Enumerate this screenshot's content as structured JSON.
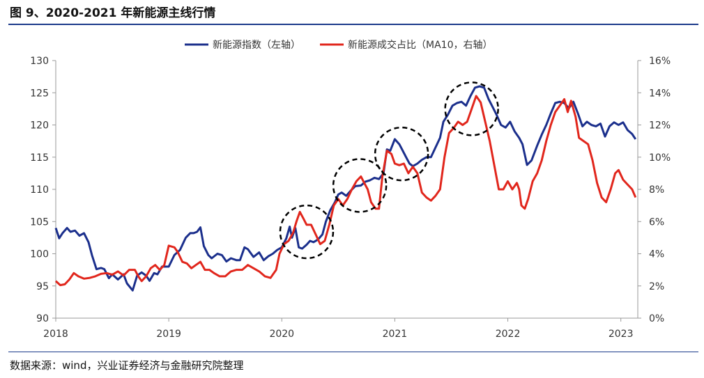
{
  "title": "图 9、2020-2021 年新能源主线行情",
  "source": "数据来源：wind，兴业证券经济与金融研究院整理",
  "chart_data": {
    "type": "line",
    "x_tick_labels": [
      "2018",
      "2019",
      "2020",
      "2021",
      "2022",
      "2023"
    ],
    "xlim": [
      2018.0,
      2023.15
    ],
    "y_left": {
      "lim": [
        90,
        130
      ],
      "ticks": [
        "90",
        "95",
        "100",
        "105",
        "110",
        "115",
        "120",
        "125",
        "130"
      ]
    },
    "y_right": {
      "lim": [
        0,
        16
      ],
      "ticks": [
        "0%",
        "2%",
        "4%",
        "6%",
        "8%",
        "10%",
        "12%",
        "14%",
        "16%"
      ]
    },
    "series": [
      {
        "name": "新能源指数（左轴）",
        "axis": "left",
        "color": "#1b2f8c",
        "points": [
          [
            2018.0,
            104.0
          ],
          [
            2018.03,
            102.4
          ],
          [
            2018.06,
            103.2
          ],
          [
            2018.1,
            104.0
          ],
          [
            2018.13,
            103.4
          ],
          [
            2018.17,
            103.6
          ],
          [
            2018.21,
            102.8
          ],
          [
            2018.25,
            103.2
          ],
          [
            2018.29,
            101.8
          ],
          [
            2018.32,
            99.8
          ],
          [
            2018.36,
            97.6
          ],
          [
            2018.4,
            97.8
          ],
          [
            2018.43,
            97.6
          ],
          [
            2018.47,
            96.2
          ],
          [
            2018.5,
            96.8
          ],
          [
            2018.55,
            96.0
          ],
          [
            2018.6,
            96.8
          ],
          [
            2018.63,
            95.4
          ],
          [
            2018.68,
            94.3
          ],
          [
            2018.72,
            96.6
          ],
          [
            2018.76,
            97.1
          ],
          [
            2018.8,
            96.6
          ],
          [
            2018.83,
            95.8
          ],
          [
            2018.87,
            97.0
          ],
          [
            2018.9,
            96.8
          ],
          [
            2018.94,
            98.0
          ],
          [
            2019.0,
            98.0
          ],
          [
            2019.05,
            99.8
          ],
          [
            2019.1,
            100.6
          ],
          [
            2019.15,
            102.5
          ],
          [
            2019.19,
            103.2
          ],
          [
            2019.22,
            103.2
          ],
          [
            2019.25,
            103.4
          ],
          [
            2019.28,
            104.1
          ],
          [
            2019.31,
            101.2
          ],
          [
            2019.35,
            99.8
          ],
          [
            2019.38,
            99.3
          ],
          [
            2019.43,
            100.0
          ],
          [
            2019.47,
            99.8
          ],
          [
            2019.51,
            98.8
          ],
          [
            2019.55,
            99.3
          ],
          [
            2019.6,
            99.0
          ],
          [
            2019.63,
            99.0
          ],
          [
            2019.67,
            101.0
          ],
          [
            2019.7,
            100.7
          ],
          [
            2019.75,
            99.5
          ],
          [
            2019.8,
            100.2
          ],
          [
            2019.84,
            99.0
          ],
          [
            2019.88,
            99.6
          ],
          [
            2019.92,
            100.0
          ],
          [
            2019.96,
            100.6
          ],
          [
            2020.0,
            101.0
          ],
          [
            2020.04,
            102.4
          ],
          [
            2020.07,
            104.2
          ],
          [
            2020.09,
            102.5
          ],
          [
            2020.12,
            104.0
          ],
          [
            2020.15,
            101.0
          ],
          [
            2020.18,
            100.8
          ],
          [
            2020.22,
            101.4
          ],
          [
            2020.25,
            102.0
          ],
          [
            2020.28,
            101.8
          ],
          [
            2020.32,
            102.2
          ],
          [
            2020.36,
            103.0
          ],
          [
            2020.39,
            105.0
          ],
          [
            2020.43,
            106.8
          ],
          [
            2020.47,
            108.0
          ],
          [
            2020.5,
            109.2
          ],
          [
            2020.53,
            109.5
          ],
          [
            2020.57,
            109.0
          ],
          [
            2020.61,
            109.8
          ],
          [
            2020.65,
            110.5
          ],
          [
            2020.7,
            110.6
          ],
          [
            2020.74,
            111.2
          ],
          [
            2020.78,
            111.4
          ],
          [
            2020.82,
            111.8
          ],
          [
            2020.86,
            111.6
          ],
          [
            2020.9,
            112.5
          ],
          [
            2020.93,
            116.2
          ],
          [
            2020.96,
            116.0
          ],
          [
            2021.0,
            117.8
          ],
          [
            2021.04,
            117.0
          ],
          [
            2021.07,
            116.0
          ],
          [
            2021.1,
            115.0
          ],
          [
            2021.13,
            114.0
          ],
          [
            2021.16,
            113.6
          ],
          [
            2021.2,
            114.0
          ],
          [
            2021.24,
            114.6
          ],
          [
            2021.28,
            115.0
          ],
          [
            2021.32,
            115.0
          ],
          [
            2021.36,
            116.5
          ],
          [
            2021.4,
            118.0
          ],
          [
            2021.43,
            120.5
          ],
          [
            2021.47,
            121.6
          ],
          [
            2021.51,
            123.0
          ],
          [
            2021.55,
            123.4
          ],
          [
            2021.59,
            123.6
          ],
          [
            2021.63,
            123.0
          ],
          [
            2021.67,
            124.5
          ],
          [
            2021.71,
            125.8
          ],
          [
            2021.75,
            126.0
          ],
          [
            2021.79,
            125.8
          ],
          [
            2021.83,
            124.0
          ],
          [
            2021.86,
            123.0
          ],
          [
            2021.9,
            121.6
          ],
          [
            2021.94,
            120.0
          ],
          [
            2021.98,
            119.6
          ],
          [
            2022.02,
            120.5
          ],
          [
            2022.06,
            119.0
          ],
          [
            2022.1,
            118.0
          ],
          [
            2022.13,
            117.0
          ],
          [
            2022.17,
            113.8
          ],
          [
            2022.21,
            114.5
          ],
          [
            2022.26,
            116.8
          ],
          [
            2022.3,
            118.5
          ],
          [
            2022.34,
            120.0
          ],
          [
            2022.38,
            121.8
          ],
          [
            2022.42,
            123.4
          ],
          [
            2022.46,
            123.6
          ],
          [
            2022.5,
            123.4
          ],
          [
            2022.54,
            122.6
          ],
          [
            2022.58,
            123.6
          ],
          [
            2022.62,
            121.8
          ],
          [
            2022.66,
            119.8
          ],
          [
            2022.7,
            120.5
          ],
          [
            2022.74,
            120.0
          ],
          [
            2022.78,
            119.8
          ],
          [
            2022.82,
            120.2
          ],
          [
            2022.86,
            118.2
          ],
          [
            2022.9,
            119.8
          ],
          [
            2022.94,
            120.4
          ],
          [
            2022.98,
            120.0
          ],
          [
            2023.02,
            120.4
          ],
          [
            2023.06,
            119.2
          ],
          [
            2023.1,
            118.6
          ],
          [
            2023.13,
            117.8
          ]
        ]
      },
      {
        "name": "新能源成交占比（MA10，右轴）",
        "axis": "right",
        "color": "#e1261c",
        "points": [
          [
            2018.0,
            2.3
          ],
          [
            2018.04,
            2.05
          ],
          [
            2018.08,
            2.1
          ],
          [
            2018.12,
            2.4
          ],
          [
            2018.16,
            2.8
          ],
          [
            2018.2,
            2.6
          ],
          [
            2018.25,
            2.45
          ],
          [
            2018.3,
            2.5
          ],
          [
            2018.35,
            2.6
          ],
          [
            2018.4,
            2.75
          ],
          [
            2018.45,
            2.8
          ],
          [
            2018.5,
            2.7
          ],
          [
            2018.55,
            2.9
          ],
          [
            2018.6,
            2.65
          ],
          [
            2018.65,
            3.0
          ],
          [
            2018.7,
            3.0
          ],
          [
            2018.73,
            2.6
          ],
          [
            2018.76,
            2.3
          ],
          [
            2018.8,
            2.6
          ],
          [
            2018.84,
            3.1
          ],
          [
            2018.88,
            3.3
          ],
          [
            2018.92,
            3.0
          ],
          [
            2018.96,
            3.3
          ],
          [
            2019.0,
            4.5
          ],
          [
            2019.05,
            4.4
          ],
          [
            2019.08,
            4.1
          ],
          [
            2019.12,
            3.5
          ],
          [
            2019.16,
            3.4
          ],
          [
            2019.2,
            3.1
          ],
          [
            2019.24,
            3.3
          ],
          [
            2019.28,
            3.5
          ],
          [
            2019.32,
            3.0
          ],
          [
            2019.36,
            3.0
          ],
          [
            2019.4,
            2.8
          ],
          [
            2019.45,
            2.6
          ],
          [
            2019.5,
            2.6
          ],
          [
            2019.55,
            2.9
          ],
          [
            2019.6,
            3.0
          ],
          [
            2019.65,
            3.0
          ],
          [
            2019.7,
            3.3
          ],
          [
            2019.75,
            3.1
          ],
          [
            2019.8,
            2.9
          ],
          [
            2019.85,
            2.6
          ],
          [
            2019.9,
            2.5
          ],
          [
            2019.95,
            3.0
          ],
          [
            2019.98,
            4.0
          ],
          [
            2020.02,
            4.6
          ],
          [
            2020.06,
            4.8
          ],
          [
            2020.1,
            5.3
          ],
          [
            2020.13,
            6.0
          ],
          [
            2020.16,
            6.6
          ],
          [
            2020.19,
            6.2
          ],
          [
            2020.22,
            5.8
          ],
          [
            2020.26,
            5.8
          ],
          [
            2020.3,
            5.2
          ],
          [
            2020.34,
            4.6
          ],
          [
            2020.38,
            4.8
          ],
          [
            2020.42,
            5.8
          ],
          [
            2020.46,
            7.0
          ],
          [
            2020.5,
            7.4
          ],
          [
            2020.54,
            7.0
          ],
          [
            2020.58,
            7.4
          ],
          [
            2020.62,
            8.0
          ],
          [
            2020.66,
            8.5
          ],
          [
            2020.7,
            8.8
          ],
          [
            2020.73,
            8.4
          ],
          [
            2020.76,
            8.0
          ],
          [
            2020.79,
            7.2
          ],
          [
            2020.83,
            6.8
          ],
          [
            2020.86,
            6.8
          ],
          [
            2020.89,
            8.8
          ],
          [
            2020.93,
            10.4
          ],
          [
            2020.97,
            10.2
          ],
          [
            2021.0,
            9.6
          ],
          [
            2021.04,
            9.5
          ],
          [
            2021.08,
            9.6
          ],
          [
            2021.12,
            9.0
          ],
          [
            2021.16,
            9.4
          ],
          [
            2021.2,
            9.0
          ],
          [
            2021.24,
            7.8
          ],
          [
            2021.28,
            7.5
          ],
          [
            2021.32,
            7.3
          ],
          [
            2021.36,
            7.6
          ],
          [
            2021.4,
            8.0
          ],
          [
            2021.44,
            10.0
          ],
          [
            2021.48,
            11.5
          ],
          [
            2021.52,
            11.8
          ],
          [
            2021.56,
            12.2
          ],
          [
            2021.6,
            12.0
          ],
          [
            2021.64,
            12.2
          ],
          [
            2021.68,
            13.0
          ],
          [
            2021.72,
            13.8
          ],
          [
            2021.76,
            13.4
          ],
          [
            2021.8,
            12.2
          ],
          [
            2021.84,
            11.0
          ],
          [
            2021.88,
            9.5
          ],
          [
            2021.92,
            8.0
          ],
          [
            2021.96,
            8.0
          ],
          [
            2022.0,
            8.5
          ],
          [
            2022.04,
            8.0
          ],
          [
            2022.08,
            8.4
          ],
          [
            2022.1,
            8.0
          ],
          [
            2022.12,
            7.0
          ],
          [
            2022.15,
            6.8
          ],
          [
            2022.18,
            7.4
          ],
          [
            2022.22,
            8.5
          ],
          [
            2022.26,
            9.0
          ],
          [
            2022.3,
            9.8
          ],
          [
            2022.34,
            11.0
          ],
          [
            2022.38,
            12.0
          ],
          [
            2022.42,
            12.8
          ],
          [
            2022.46,
            13.2
          ],
          [
            2022.5,
            13.6
          ],
          [
            2022.53,
            12.8
          ],
          [
            2022.56,
            13.5
          ],
          [
            2022.6,
            12.5
          ],
          [
            2022.63,
            11.2
          ],
          [
            2022.67,
            11.0
          ],
          [
            2022.71,
            10.8
          ],
          [
            2022.75,
            9.8
          ],
          [
            2022.79,
            8.4
          ],
          [
            2022.83,
            7.5
          ],
          [
            2022.87,
            7.2
          ],
          [
            2022.91,
            8.0
          ],
          [
            2022.95,
            9.0
          ],
          [
            2022.98,
            9.2
          ],
          [
            2023.02,
            8.6
          ],
          [
            2023.06,
            8.3
          ],
          [
            2023.1,
            8.0
          ],
          [
            2023.13,
            7.5
          ]
        ]
      }
    ],
    "annotations": [
      "dashed-circle 2020 Q1",
      "dashed-circle 2020 H2",
      "dashed-circle 2021 Q1",
      "dashed-circle 2021 Q3"
    ],
    "legend_position": "top-center",
    "grid": false
  }
}
